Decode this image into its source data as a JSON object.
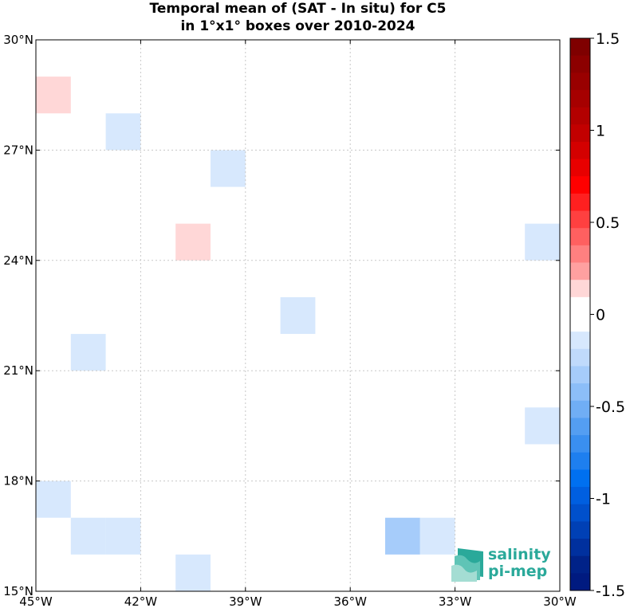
{
  "title": {
    "line1": "Temporal mean of (SAT - In situ) for C5",
    "line2": "in 1°x1° boxes over 2010-2024"
  },
  "map": {
    "lon_range": [
      -45,
      -30
    ],
    "lat_range": [
      15,
      30
    ],
    "grid": true,
    "x_ticks": [
      {
        "value": -45,
        "label": "45°W"
      },
      {
        "value": -42,
        "label": "42°W"
      },
      {
        "value": -39,
        "label": "39°W"
      },
      {
        "value": -36,
        "label": "36°W"
      },
      {
        "value": -33,
        "label": "33°W"
      },
      {
        "value": -30,
        "label": "30°W"
      }
    ],
    "y_ticks": [
      {
        "value": 15,
        "label": "15°N"
      },
      {
        "value": 18,
        "label": "18°N"
      },
      {
        "value": 21,
        "label": "21°N"
      },
      {
        "value": 24,
        "label": "24°N"
      },
      {
        "value": 27,
        "label": "27°N"
      },
      {
        "value": 30,
        "label": "30°N"
      }
    ]
  },
  "chart_data": {
    "type": "heatmap",
    "title": "Temporal mean of (SAT - In situ) for C5 in 1°x1° boxes over 2010-2024",
    "cells": [
      {
        "lon": -45,
        "lat": 28,
        "value": 0.15
      },
      {
        "lon": -43,
        "lat": 27,
        "value": -0.15
      },
      {
        "lon": -40,
        "lat": 26,
        "value": -0.15
      },
      {
        "lon": -41,
        "lat": 24,
        "value": 0.15
      },
      {
        "lon": -31,
        "lat": 24,
        "value": -0.15
      },
      {
        "lon": -38,
        "lat": 22,
        "value": -0.15
      },
      {
        "lon": -44,
        "lat": 21,
        "value": -0.15
      },
      {
        "lon": -31,
        "lat": 19,
        "value": -0.15
      },
      {
        "lon": -45,
        "lat": 17,
        "value": -0.15
      },
      {
        "lon": -44,
        "lat": 16,
        "value": -0.15
      },
      {
        "lon": -43,
        "lat": 16,
        "value": -0.15
      },
      {
        "lon": -35,
        "lat": 16,
        "value": -0.3
      },
      {
        "lon": -34,
        "lat": 16,
        "value": -0.15
      },
      {
        "lon": -41,
        "lat": 15,
        "value": -0.15
      }
    ],
    "colorbar": {
      "range": [
        -1.5,
        1.5
      ],
      "ticks": [
        {
          "value": 1.5,
          "label": "1.5"
        },
        {
          "value": 1,
          "label": "1"
        },
        {
          "value": 0.5,
          "label": "0.5"
        },
        {
          "value": 0,
          "label": "0"
        },
        {
          "value": -0.5,
          "label": "-0.5"
        },
        {
          "value": -1,
          "label": "-1"
        },
        {
          "value": -1.5,
          "label": "-1.5"
        }
      ],
      "colors_top_to_bottom": [
        "#7f0000",
        "#8c0000",
        "#990000",
        "#a60000",
        "#b30000",
        "#c20000",
        "#d40000",
        "#e80000",
        "#ff0000",
        "#ff2020",
        "#ff4040",
        "#ff6060",
        "#ff8080",
        "#ffa0a0",
        "#ffd7d7",
        "#ffffff",
        "#ffffff",
        "#d7e8fd",
        "#c0dafb",
        "#a6ccfa",
        "#8cbef8",
        "#70aef5",
        "#549ef2",
        "#3a8ff0",
        "#1e7fef",
        "#0070f0",
        "#005fe0",
        "#0050cc",
        "#0040b5",
        "#00309e",
        "#002288",
        "#001a80"
      ]
    }
  },
  "logo": {
    "line1": "salinity",
    "line2": "pi-mep",
    "color": "#2aa99a"
  }
}
